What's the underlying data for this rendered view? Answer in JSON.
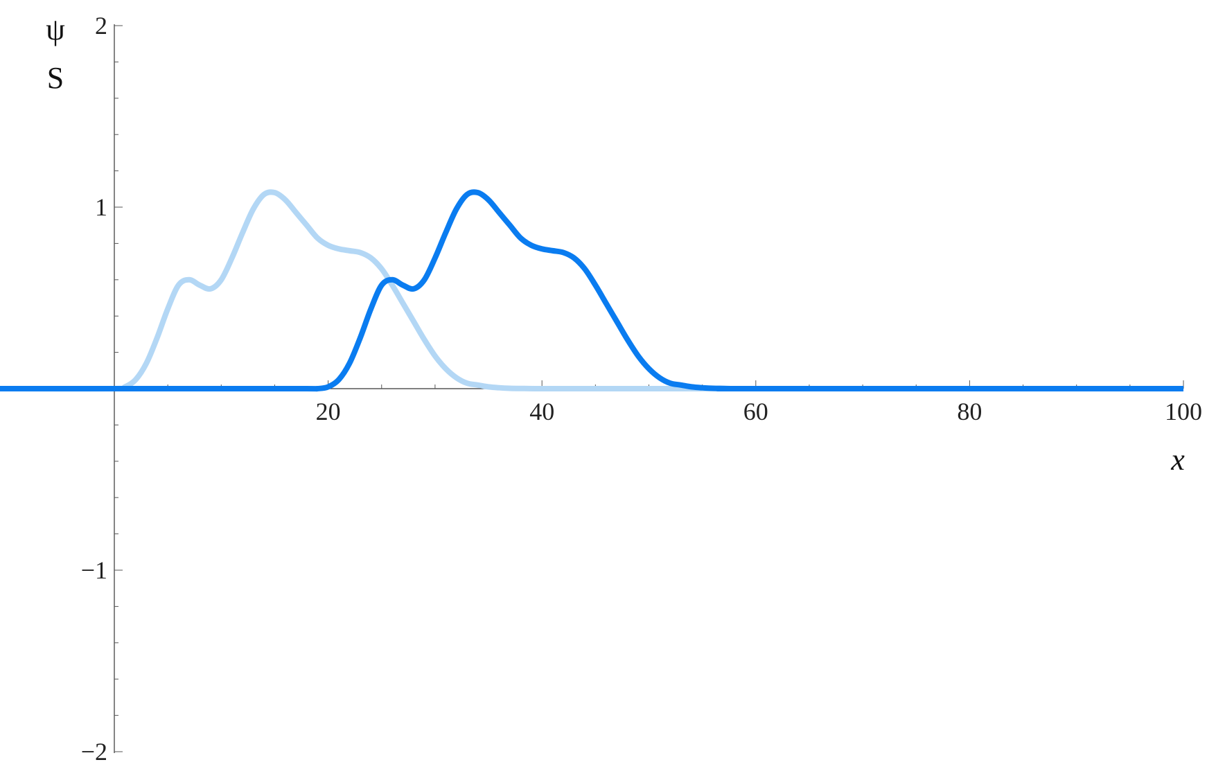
{
  "chart_data": {
    "type": "line",
    "title": "",
    "xlabel": "x",
    "ylabel_lines": [
      "ψ",
      "S"
    ],
    "xlim": [
      -25,
      100
    ],
    "ylim": [
      -2,
      2
    ],
    "x_ticks": [
      20,
      40,
      60,
      80,
      100
    ],
    "x_tick_labels": [
      "20",
      "40",
      "60",
      "80",
      "100"
    ],
    "y_ticks": [
      -2,
      -1,
      1,
      2
    ],
    "y_tick_labels": [
      "−2",
      "−1",
      "1",
      "2"
    ],
    "grid": false,
    "legend": "none",
    "series": [
      {
        "color": "#b3d7f5",
        "x": [
          -10,
          0,
          1,
          2,
          3,
          4,
          5,
          6,
          7,
          8,
          9,
          10,
          11,
          12,
          13,
          14,
          15,
          16,
          17,
          18,
          19,
          20,
          21,
          22,
          23,
          24,
          25,
          26,
          27,
          28,
          29,
          30,
          31,
          32,
          33,
          34,
          35,
          36,
          37,
          38,
          40,
          45,
          100
        ],
        "y": [
          0,
          0,
          0.01,
          0.05,
          0.14,
          0.28,
          0.44,
          0.57,
          0.6,
          0.57,
          0.55,
          0.6,
          0.72,
          0.86,
          0.99,
          1.07,
          1.08,
          1.04,
          0.97,
          0.9,
          0.83,
          0.79,
          0.77,
          0.76,
          0.75,
          0.72,
          0.66,
          0.57,
          0.47,
          0.37,
          0.27,
          0.18,
          0.11,
          0.06,
          0.03,
          0.02,
          0.01,
          0.005,
          0.002,
          0.001,
          0,
          0,
          0
        ]
      },
      {
        "color": "#0a7cf0",
        "x": [
          -25,
          0,
          10,
          18,
          19,
          20,
          21,
          22,
          23,
          24,
          25,
          26,
          27,
          28,
          29,
          30,
          31,
          32,
          33,
          34,
          35,
          36,
          37,
          38,
          39,
          40,
          41,
          42,
          43,
          44,
          45,
          46,
          47,
          48,
          49,
          50,
          51,
          52,
          53,
          54,
          55,
          56,
          57,
          58,
          60,
          100
        ],
        "y": [
          0,
          0,
          0,
          0,
          0,
          0.01,
          0.05,
          0.14,
          0.28,
          0.44,
          0.57,
          0.6,
          0.57,
          0.55,
          0.6,
          0.72,
          0.86,
          0.99,
          1.07,
          1.08,
          1.04,
          0.97,
          0.9,
          0.83,
          0.79,
          0.77,
          0.76,
          0.75,
          0.72,
          0.66,
          0.57,
          0.47,
          0.37,
          0.27,
          0.18,
          0.11,
          0.06,
          0.03,
          0.02,
          0.01,
          0.005,
          0.002,
          0.001,
          0,
          0,
          0
        ]
      }
    ]
  }
}
